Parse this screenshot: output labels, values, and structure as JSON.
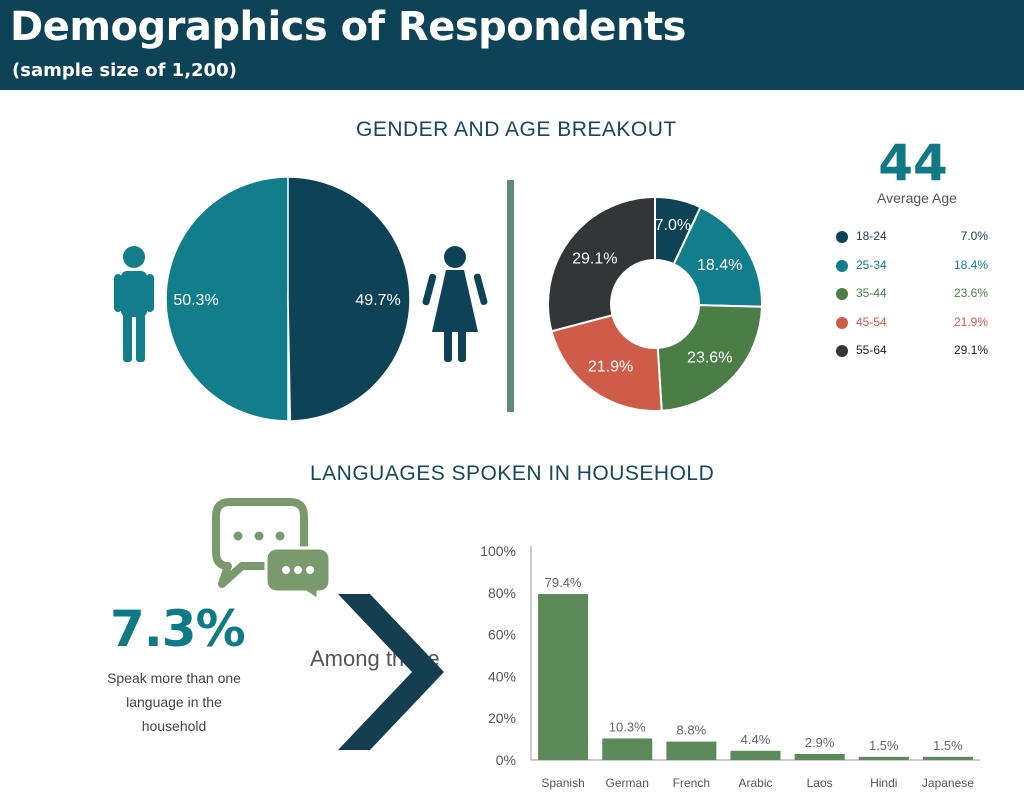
{
  "header": {
    "title": "Demographics of Respondents",
    "subtitle": "(sample size of 1,200)"
  },
  "sections": {
    "gender_age": "GENDER AND AGE BREAKOUT",
    "languages": "LANGUAGES SPOKEN IN HOUSEHOLD"
  },
  "average_age": {
    "value": "44",
    "label": "Average Age"
  },
  "languages_stat": {
    "value": "7.3%",
    "text": "Speak more than one language in the household",
    "among": "Among those"
  },
  "colors": {
    "header_bg": "#0e4357",
    "male": "#127d8b",
    "female": "#0e4357",
    "divider": "#5e8a78",
    "age_18_24": "#0e4357",
    "age_25_34": "#127d8b",
    "age_35_44": "#4a7e46",
    "age_45_54": "#cf5c48",
    "age_55_64": "#333537",
    "bar": "#5b8a58",
    "chat_icon": "#7a9a6d",
    "chevron": "#153f50"
  },
  "icons": [
    "male-person-icon",
    "female-person-icon",
    "chat-bubbles-icon",
    "chevron-right-icon"
  ],
  "chart_data": [
    {
      "type": "pie",
      "labels": [
        "",
        ""
      ],
      "values": [
        50.3,
        49.7
      ],
      "value_labels": [
        "50.3%",
        "49.7%"
      ]
    },
    {
      "type": "pie",
      "donut": true,
      "labels": [
        "18-24",
        "25-34",
        "35-44",
        "45-54",
        "55-64"
      ],
      "values": [
        7.0,
        18.4,
        23.6,
        21.9,
        29.1
      ],
      "value_labels": [
        "7.0%",
        "18.4%",
        "23.6%",
        "21.9%",
        "29.1%"
      ],
      "legend_values": [
        "7.0%",
        "18.4%",
        "23.6%",
        "21.9%",
        "29.1%"
      ],
      "legend": "right"
    },
    {
      "type": "bar",
      "categories": [
        "Spanish",
        "German",
        "French",
        "Arabic",
        "Laos",
        "Hindi",
        "Japanese"
      ],
      "values": [
        79.4,
        10.3,
        8.8,
        4.4,
        2.9,
        1.5,
        1.5
      ],
      "value_labels": [
        "79.4%",
        "10.3%",
        "8.8%",
        "4.4%",
        "2.9%",
        "1.5%",
        "1.5%"
      ],
      "ylim": [
        0,
        100
      ],
      "yticks": [
        "0%",
        "20%",
        "40%",
        "60%",
        "80%",
        "100%"
      ],
      "grid": false
    }
  ]
}
